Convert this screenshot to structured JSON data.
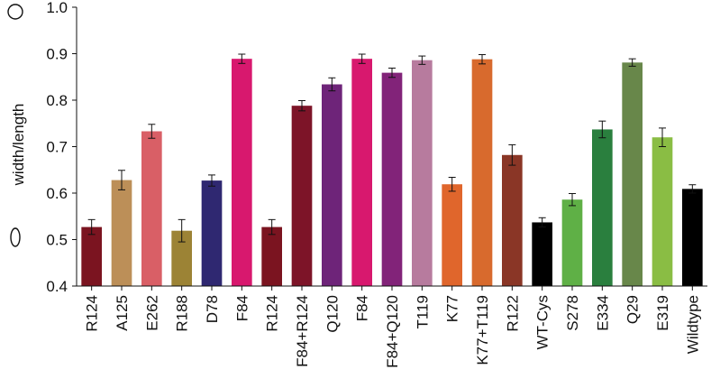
{
  "chart_data": {
    "type": "bar",
    "title": "",
    "xlabel": "",
    "ylabel": "width/length",
    "ylim": [
      0.4,
      1.0
    ],
    "yticks": [
      "0.4",
      "0.5",
      "0.6",
      "0.7",
      "0.8",
      "0.9",
      "1.0"
    ],
    "ytick_values": [
      0.4,
      0.5,
      0.6,
      0.7,
      0.8,
      0.9,
      1.0
    ],
    "grid": false,
    "legend": "none",
    "axis_icons": {
      "top": "circle-shape-icon",
      "bottom": "ellipse-shape-icon"
    },
    "categories": [
      "R124",
      "A125",
      "E262",
      "R188",
      "D78",
      "F84",
      "R124",
      "F84+R124",
      "Q120",
      "F84",
      "F84+Q120",
      "T119",
      "K77",
      "K77+T119",
      "R122",
      "WT-Cys",
      "S278",
      "E334",
      "Q29",
      "E319",
      "Wildtype"
    ],
    "values": [
      0.527,
      0.628,
      0.733,
      0.519,
      0.627,
      0.889,
      0.527,
      0.788,
      0.834,
      0.889,
      0.859,
      0.886,
      0.619,
      0.888,
      0.682,
      0.537,
      0.586,
      0.737,
      0.881,
      0.72,
      0.609
    ],
    "errors": [
      0.016,
      0.021,
      0.015,
      0.024,
      0.012,
      0.01,
      0.016,
      0.011,
      0.014,
      0.01,
      0.01,
      0.009,
      0.015,
      0.01,
      0.022,
      0.01,
      0.013,
      0.018,
      0.008,
      0.02,
      0.009
    ],
    "colors": [
      "#7b1420",
      "#bc8f58",
      "#d95f66",
      "#9c8335",
      "#2f2871",
      "#d8186e",
      "#7b1420",
      "#7d1428",
      "#6e2479",
      "#d8186e",
      "#822379",
      "#b77b9e",
      "#e0662c",
      "#d86a2d",
      "#8a3626",
      "#000000",
      "#5fb046",
      "#2a7f3e",
      "#68874a",
      "#8abd44",
      "#000000"
    ]
  }
}
